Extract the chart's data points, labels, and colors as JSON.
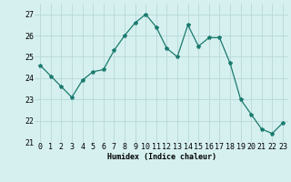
{
  "x": [
    0,
    1,
    2,
    3,
    4,
    5,
    6,
    7,
    8,
    9,
    10,
    11,
    12,
    13,
    14,
    15,
    16,
    17,
    18,
    19,
    20,
    21,
    22,
    23
  ],
  "y": [
    24.6,
    24.1,
    23.6,
    23.1,
    23.9,
    24.3,
    24.4,
    25.3,
    26.0,
    26.6,
    27.0,
    26.4,
    25.4,
    25.0,
    26.5,
    25.5,
    25.9,
    25.9,
    24.7,
    23.0,
    22.3,
    21.6,
    21.4,
    21.9
  ],
  "line_color": "#1a7a6e",
  "marker_size": 3,
  "bg_color": "#d6f0f0",
  "grid_color": "#b8d8d8",
  "xlabel": "Humidex (Indice chaleur)",
  "ylim": [
    21,
    27.5
  ],
  "yticks": [
    21,
    22,
    23,
    24,
    25,
    26,
    27
  ],
  "xticks": [
    0,
    1,
    2,
    3,
    4,
    5,
    6,
    7,
    8,
    9,
    10,
    11,
    12,
    13,
    14,
    15,
    16,
    17,
    18,
    19,
    20,
    21,
    22,
    23
  ],
  "label_fontsize": 6,
  "tick_fontsize": 6
}
